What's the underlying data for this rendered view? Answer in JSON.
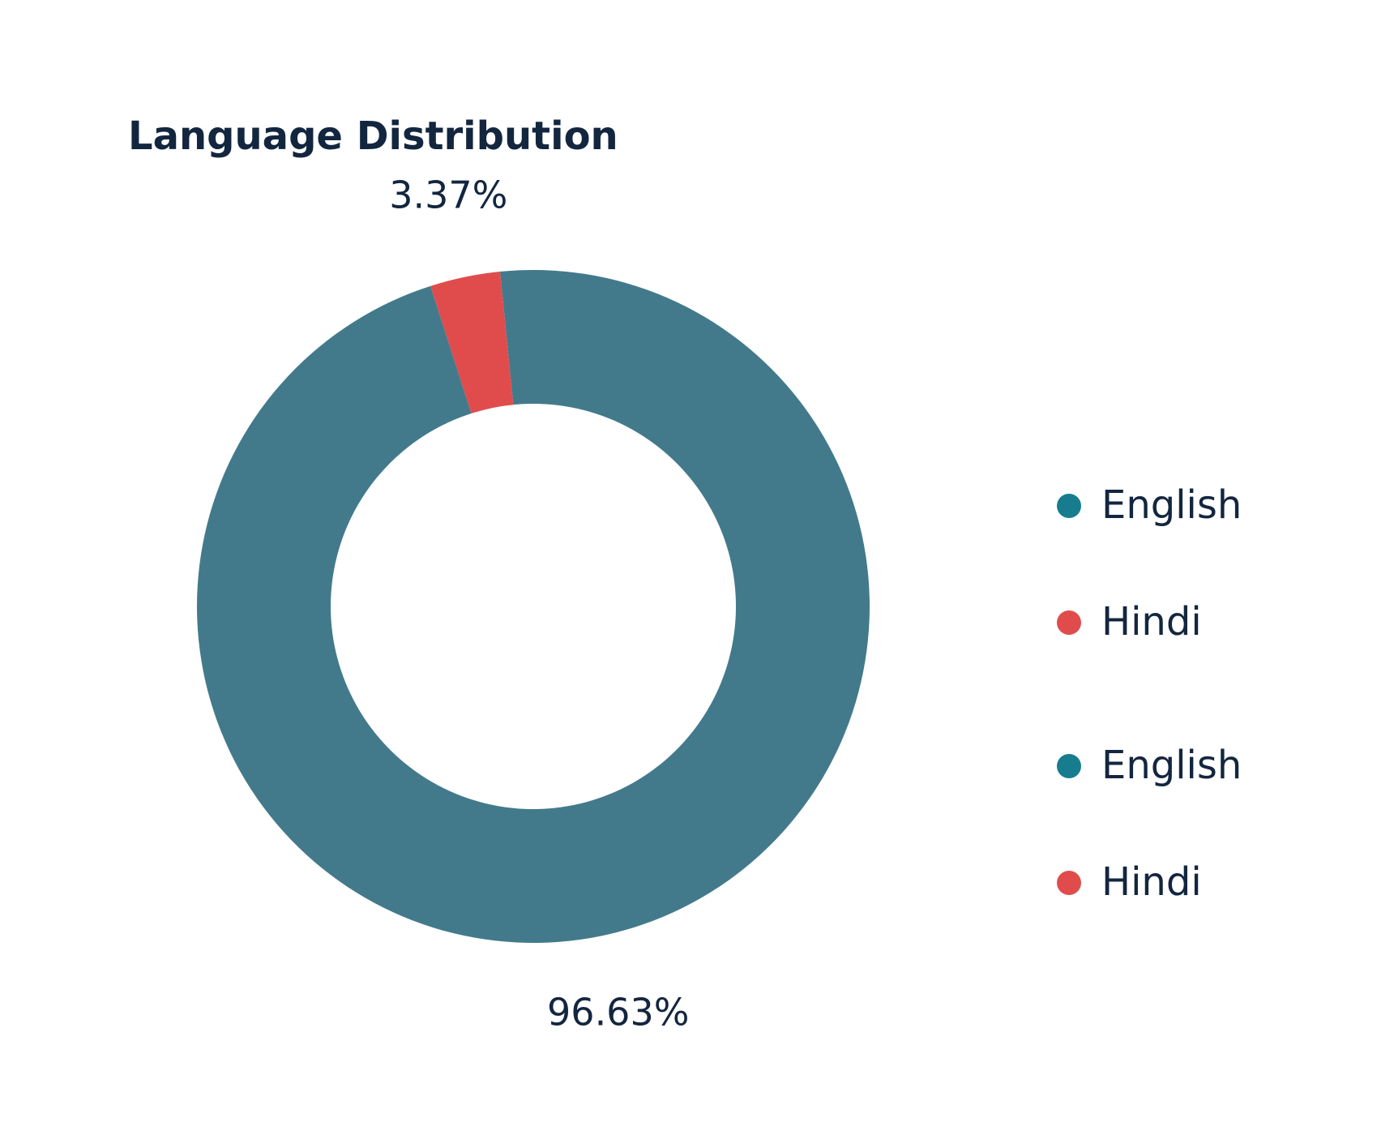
{
  "chart_data": {
    "type": "donut",
    "title": "Language Distribution",
    "categories": [
      "English",
      "Hindi"
    ],
    "values": [
      96.63,
      3.37
    ],
    "value_labels": [
      "96.63%",
      "3.37%"
    ],
    "colors": [
      "#427a8c",
      "#e04c4c"
    ],
    "legend": [
      "English",
      "Hindi",
      "English",
      "Hindi"
    ],
    "legend_colors": [
      "#177c8e",
      "#e04c4c",
      "#177c8e",
      "#e04c4c"
    ],
    "legend_position": "right"
  }
}
